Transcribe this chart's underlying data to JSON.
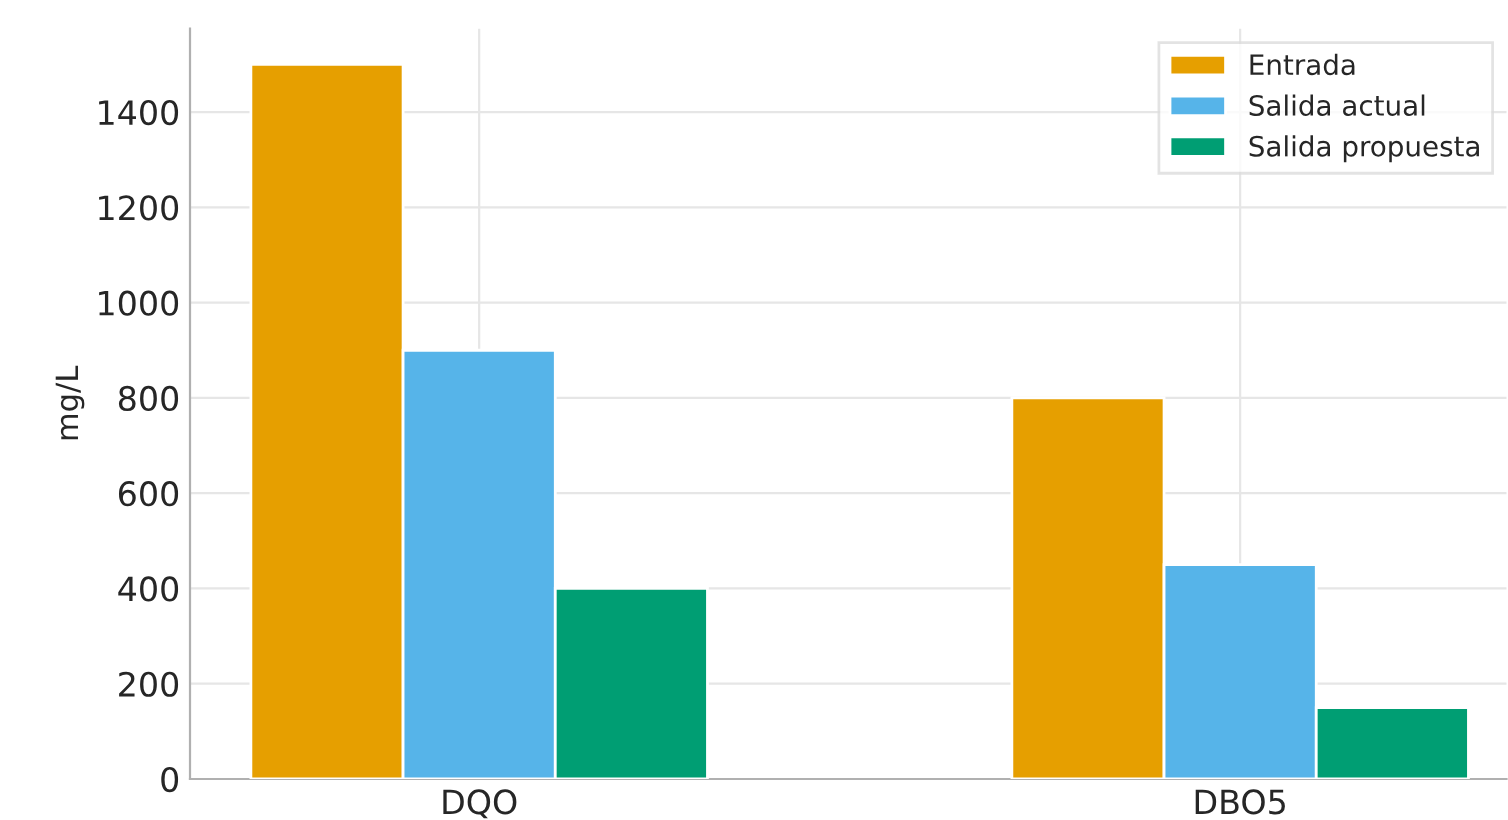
{
  "chart_data": {
    "type": "bar",
    "ylabel": "mg/L",
    "categories": [
      "DQO",
      "DBO5"
    ],
    "series": [
      {
        "name": "Entrada",
        "color": "#e69f00",
        "values": [
          1500,
          800
        ]
      },
      {
        "name": "Salida actual",
        "color": "#56b4e9",
        "values": [
          900,
          450
        ]
      },
      {
        "name": "Salida propuesta",
        "color": "#009e73",
        "values": [
          400,
          150
        ]
      }
    ],
    "ylim": [
      0,
      1575
    ],
    "yticks": [
      0,
      200,
      400,
      600,
      800,
      1000,
      1200,
      1400
    ],
    "grid": true,
    "legend": "top right"
  }
}
